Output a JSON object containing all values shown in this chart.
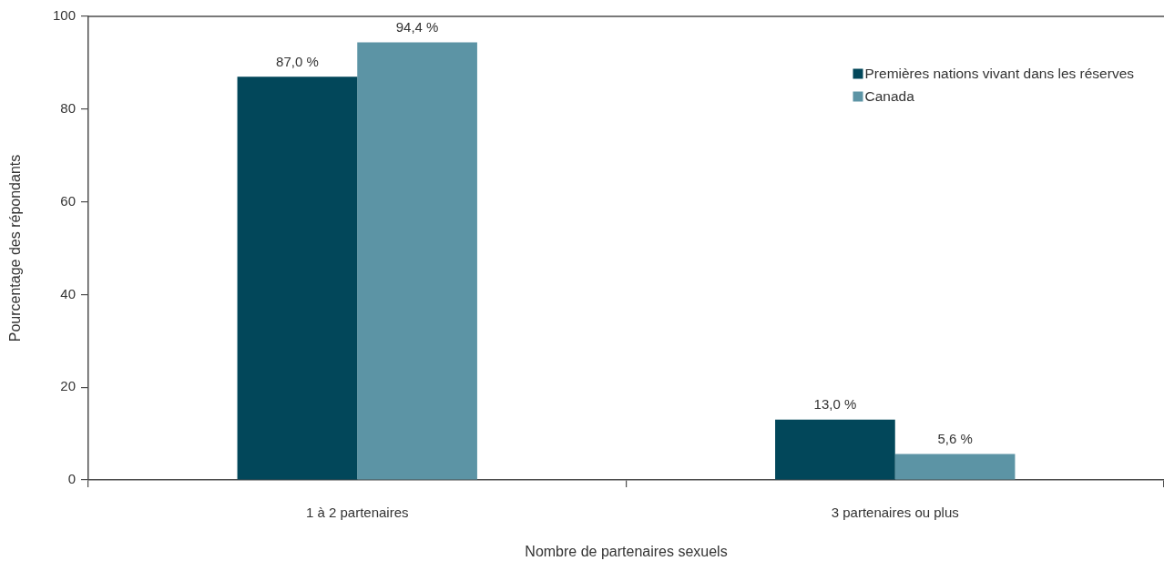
{
  "chart_data": {
    "type": "bar",
    "xlabel": "Nombre de partenaires sexuels",
    "ylabel": "Pourcentage des répondants",
    "categories": [
      "1 à 2 partenaires",
      "3 partenaires ou plus"
    ],
    "series": [
      {
        "name": "Premières nations vivant dans les réserves",
        "color": "#02475a",
        "values": [
          87.0,
          13.0
        ],
        "value_labels": [
          "87,0 %",
          "13,0 %"
        ]
      },
      {
        "name": "Canada",
        "color": "#5c94a5",
        "values": [
          94.4,
          5.6
        ],
        "value_labels": [
          "94,4 %",
          "5,6 %"
        ]
      }
    ],
    "ylim": [
      0,
      100
    ],
    "yticks": [
      0,
      20,
      40,
      60,
      80,
      100
    ],
    "grid": false,
    "legend": "top right"
  }
}
